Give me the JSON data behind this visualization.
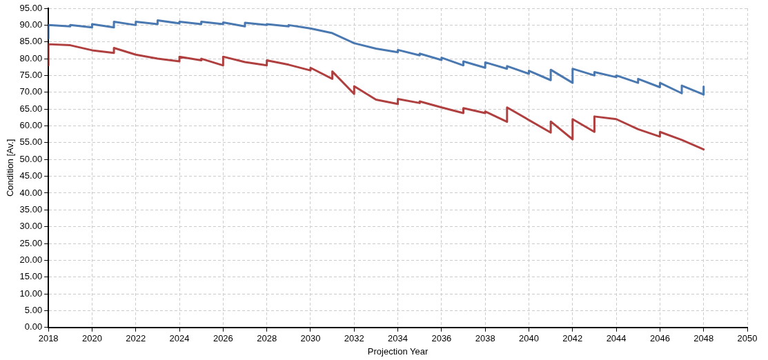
{
  "chart_data": {
    "type": "line",
    "xlabel": "Projection Year",
    "ylabel": "Condition [Av.]",
    "xlim": [
      2018,
      2050
    ],
    "xticks": [
      2018,
      2020,
      2022,
      2024,
      2026,
      2028,
      2030,
      2032,
      2034,
      2036,
      2038,
      2040,
      2042,
      2044,
      2046,
      2048,
      2050
    ],
    "ylim": [
      0,
      95
    ],
    "yticks": [
      {
        "value": 0,
        "label": "0.00"
      },
      {
        "value": 5,
        "label": "5.00"
      },
      {
        "value": 10,
        "label": "10.00"
      },
      {
        "value": 15,
        "label": "15.00"
      },
      {
        "value": 20,
        "label": "20.00"
      },
      {
        "value": 25,
        "label": "25.00"
      },
      {
        "value": 30,
        "label": "30.00"
      },
      {
        "value": 35,
        "label": "35.00"
      },
      {
        "value": 40,
        "label": "40.00"
      },
      {
        "value": 45,
        "label": "45.00"
      },
      {
        "value": 50,
        "label": "50.00"
      },
      {
        "value": 55,
        "label": "55.00"
      },
      {
        "value": 60,
        "label": "60.00"
      },
      {
        "value": 65,
        "label": "65.00"
      },
      {
        "value": 70,
        "label": "70.00"
      },
      {
        "value": 75,
        "label": "75.00"
      },
      {
        "value": 80,
        "label": "80.00"
      },
      {
        "value": 85,
        "label": "85.00"
      },
      {
        "value": 90,
        "label": "90.00"
      },
      {
        "value": 95,
        "label": "95.00"
      }
    ],
    "grid": true,
    "legend": false,
    "marker": "none",
    "line_style": "solid",
    "series": [
      {
        "color": "#4a78b0",
        "x": [
          2018,
          2018,
          2019,
          2019,
          2020,
          2020,
          2021,
          2021,
          2022,
          2022,
          2023,
          2023,
          2024,
          2024,
          2025,
          2025,
          2026,
          2026,
          2027,
          2027,
          2028,
          2028,
          2029,
          2029,
          2030,
          2031,
          2032,
          2033,
          2034,
          2034,
          2035,
          2035,
          2036,
          2036,
          2037,
          2037,
          2038,
          2038,
          2039,
          2039,
          2040,
          2040,
          2041,
          2041,
          2042,
          2042,
          2043,
          2043,
          2044,
          2044,
          2045,
          2045,
          2046,
          2046,
          2047,
          2047,
          2048,
          2048
        ],
        "values": [
          86,
          90,
          89.6,
          90,
          89.3,
          90.3,
          89.3,
          91,
          90,
          91,
          90.3,
          91.4,
          90.5,
          91,
          90.3,
          91,
          90.3,
          90.8,
          89.6,
          90.7,
          90,
          90.3,
          89.6,
          90,
          89,
          87.6,
          84.6,
          83,
          81.9,
          82.6,
          81,
          81.5,
          79.6,
          80.3,
          78,
          79.2,
          77.3,
          78.9,
          77,
          77.8,
          75.5,
          76.4,
          73.6,
          76.7,
          72.8,
          77,
          75,
          76,
          74.5,
          75,
          72.8,
          74,
          71.5,
          72.8,
          69.7,
          72,
          69.3,
          71.7
        ]
      },
      {
        "color": "#b04040",
        "x": [
          2018,
          2018,
          2019,
          2020,
          2021,
          2021,
          2022,
          2023,
          2024,
          2024,
          2025,
          2025,
          2026,
          2026,
          2027,
          2028,
          2028,
          2029,
          2030,
          2030,
          2031,
          2031,
          2032,
          2032,
          2033,
          2034,
          2034,
          2035,
          2035,
          2036,
          2037,
          2037,
          2038,
          2038,
          2039,
          2039,
          2041,
          2041,
          2042,
          2042,
          2043,
          2043,
          2044,
          2045,
          2046,
          2046,
          2047,
          2048
        ],
        "values": [
          78,
          84.3,
          84,
          82.5,
          81.7,
          83.2,
          81.2,
          80,
          79.2,
          80.6,
          79.5,
          80,
          78,
          80.6,
          79,
          78,
          79.5,
          78.2,
          76.5,
          77.3,
          74,
          76.2,
          69.5,
          71.8,
          67.8,
          66.5,
          68,
          66.8,
          67.3,
          65.5,
          63.8,
          65.3,
          63.8,
          64.3,
          61.2,
          65.5,
          58,
          61.3,
          56,
          62,
          58.2,
          62.8,
          62,
          59,
          56.8,
          58.2,
          55.8,
          53
        ]
      }
    ]
  }
}
